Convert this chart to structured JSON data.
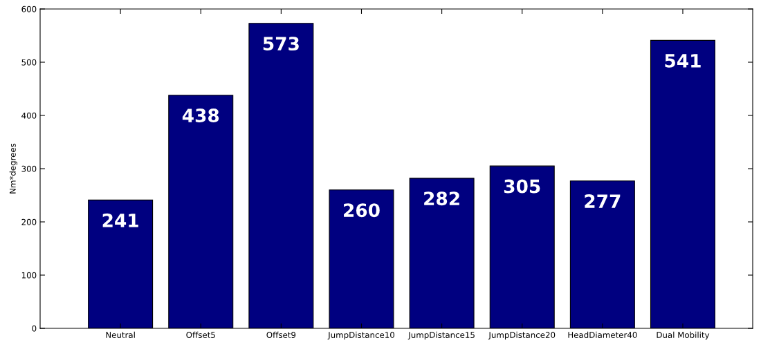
{
  "chart_data": {
    "type": "bar",
    "ylabel": "Nm*degrees",
    "categories": [
      "Neutral",
      "Offset5",
      "Offset9",
      "JumpDistance10",
      "JumpDistance15",
      "JumpDistance20",
      "HeadDiameter40",
      "Dual Mobility"
    ],
    "values": [
      241,
      438,
      573,
      260,
      282,
      305,
      277,
      541
    ],
    "color": "#000080",
    "ylim": [
      0,
      600
    ],
    "yticks": [
      0,
      100,
      200,
      300,
      400,
      500,
      600
    ],
    "data_labels": true,
    "grid": false,
    "legend": false
  }
}
